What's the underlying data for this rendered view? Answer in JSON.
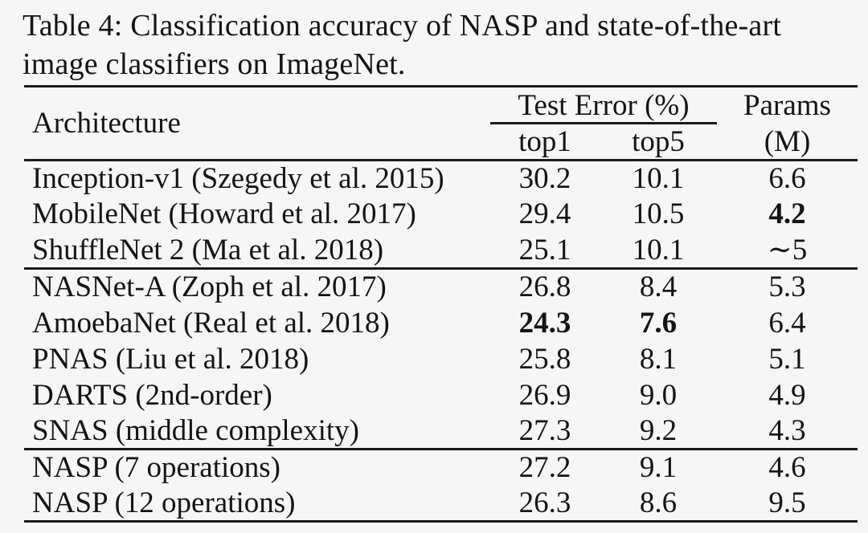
{
  "caption": {
    "line1": "Table 4: Classification accuracy of NASP and state-of-the-art",
    "line2": "image classifiers on ImageNet."
  },
  "table": {
    "headers": {
      "architecture": "Architecture",
      "test_error_group": "Test Error (%)",
      "top1": "top1",
      "top5": "top5",
      "params_line1": "Params",
      "params_line2": "(M)"
    },
    "rows": [
      {
        "architecture": "Inception-v1 (Szegedy et al. 2015)",
        "top1": "30.2",
        "top5": "10.1",
        "params": "6.6"
      },
      {
        "architecture": "MobileNet (Howard et al. 2017)",
        "top1": "29.4",
        "top5": "10.5",
        "params": "4.2"
      },
      {
        "architecture": "ShuffleNet 2 (Ma et al. 2018)",
        "top1": "25.1",
        "top5": "10.1",
        "params": "∼5"
      },
      {
        "architecture": "NASNet-A (Zoph et al. 2017)",
        "top1": "26.8",
        "top5": "8.4",
        "params": "5.3"
      },
      {
        "architecture": "AmoebaNet (Real et al. 2018)",
        "top1": "24.3",
        "top5": "7.6",
        "params": "6.4"
      },
      {
        "architecture": "PNAS (Liu et al. 2018)",
        "top1": "25.8",
        "top5": "8.1",
        "params": "5.1"
      },
      {
        "architecture": "DARTS (2nd-order)",
        "top1": "26.9",
        "top5": "9.0",
        "params": "4.9"
      },
      {
        "architecture": "SNAS (middle complexity)",
        "top1": "27.3",
        "top5": "9.2",
        "params": "4.3"
      },
      {
        "architecture": "NASP (7 operations)",
        "top1": "27.2",
        "top5": "9.1",
        "params": "4.6"
      },
      {
        "architecture": "NASP (12 operations)",
        "top1": "26.3",
        "top5": "8.6",
        "params": "9.5"
      }
    ]
  }
}
